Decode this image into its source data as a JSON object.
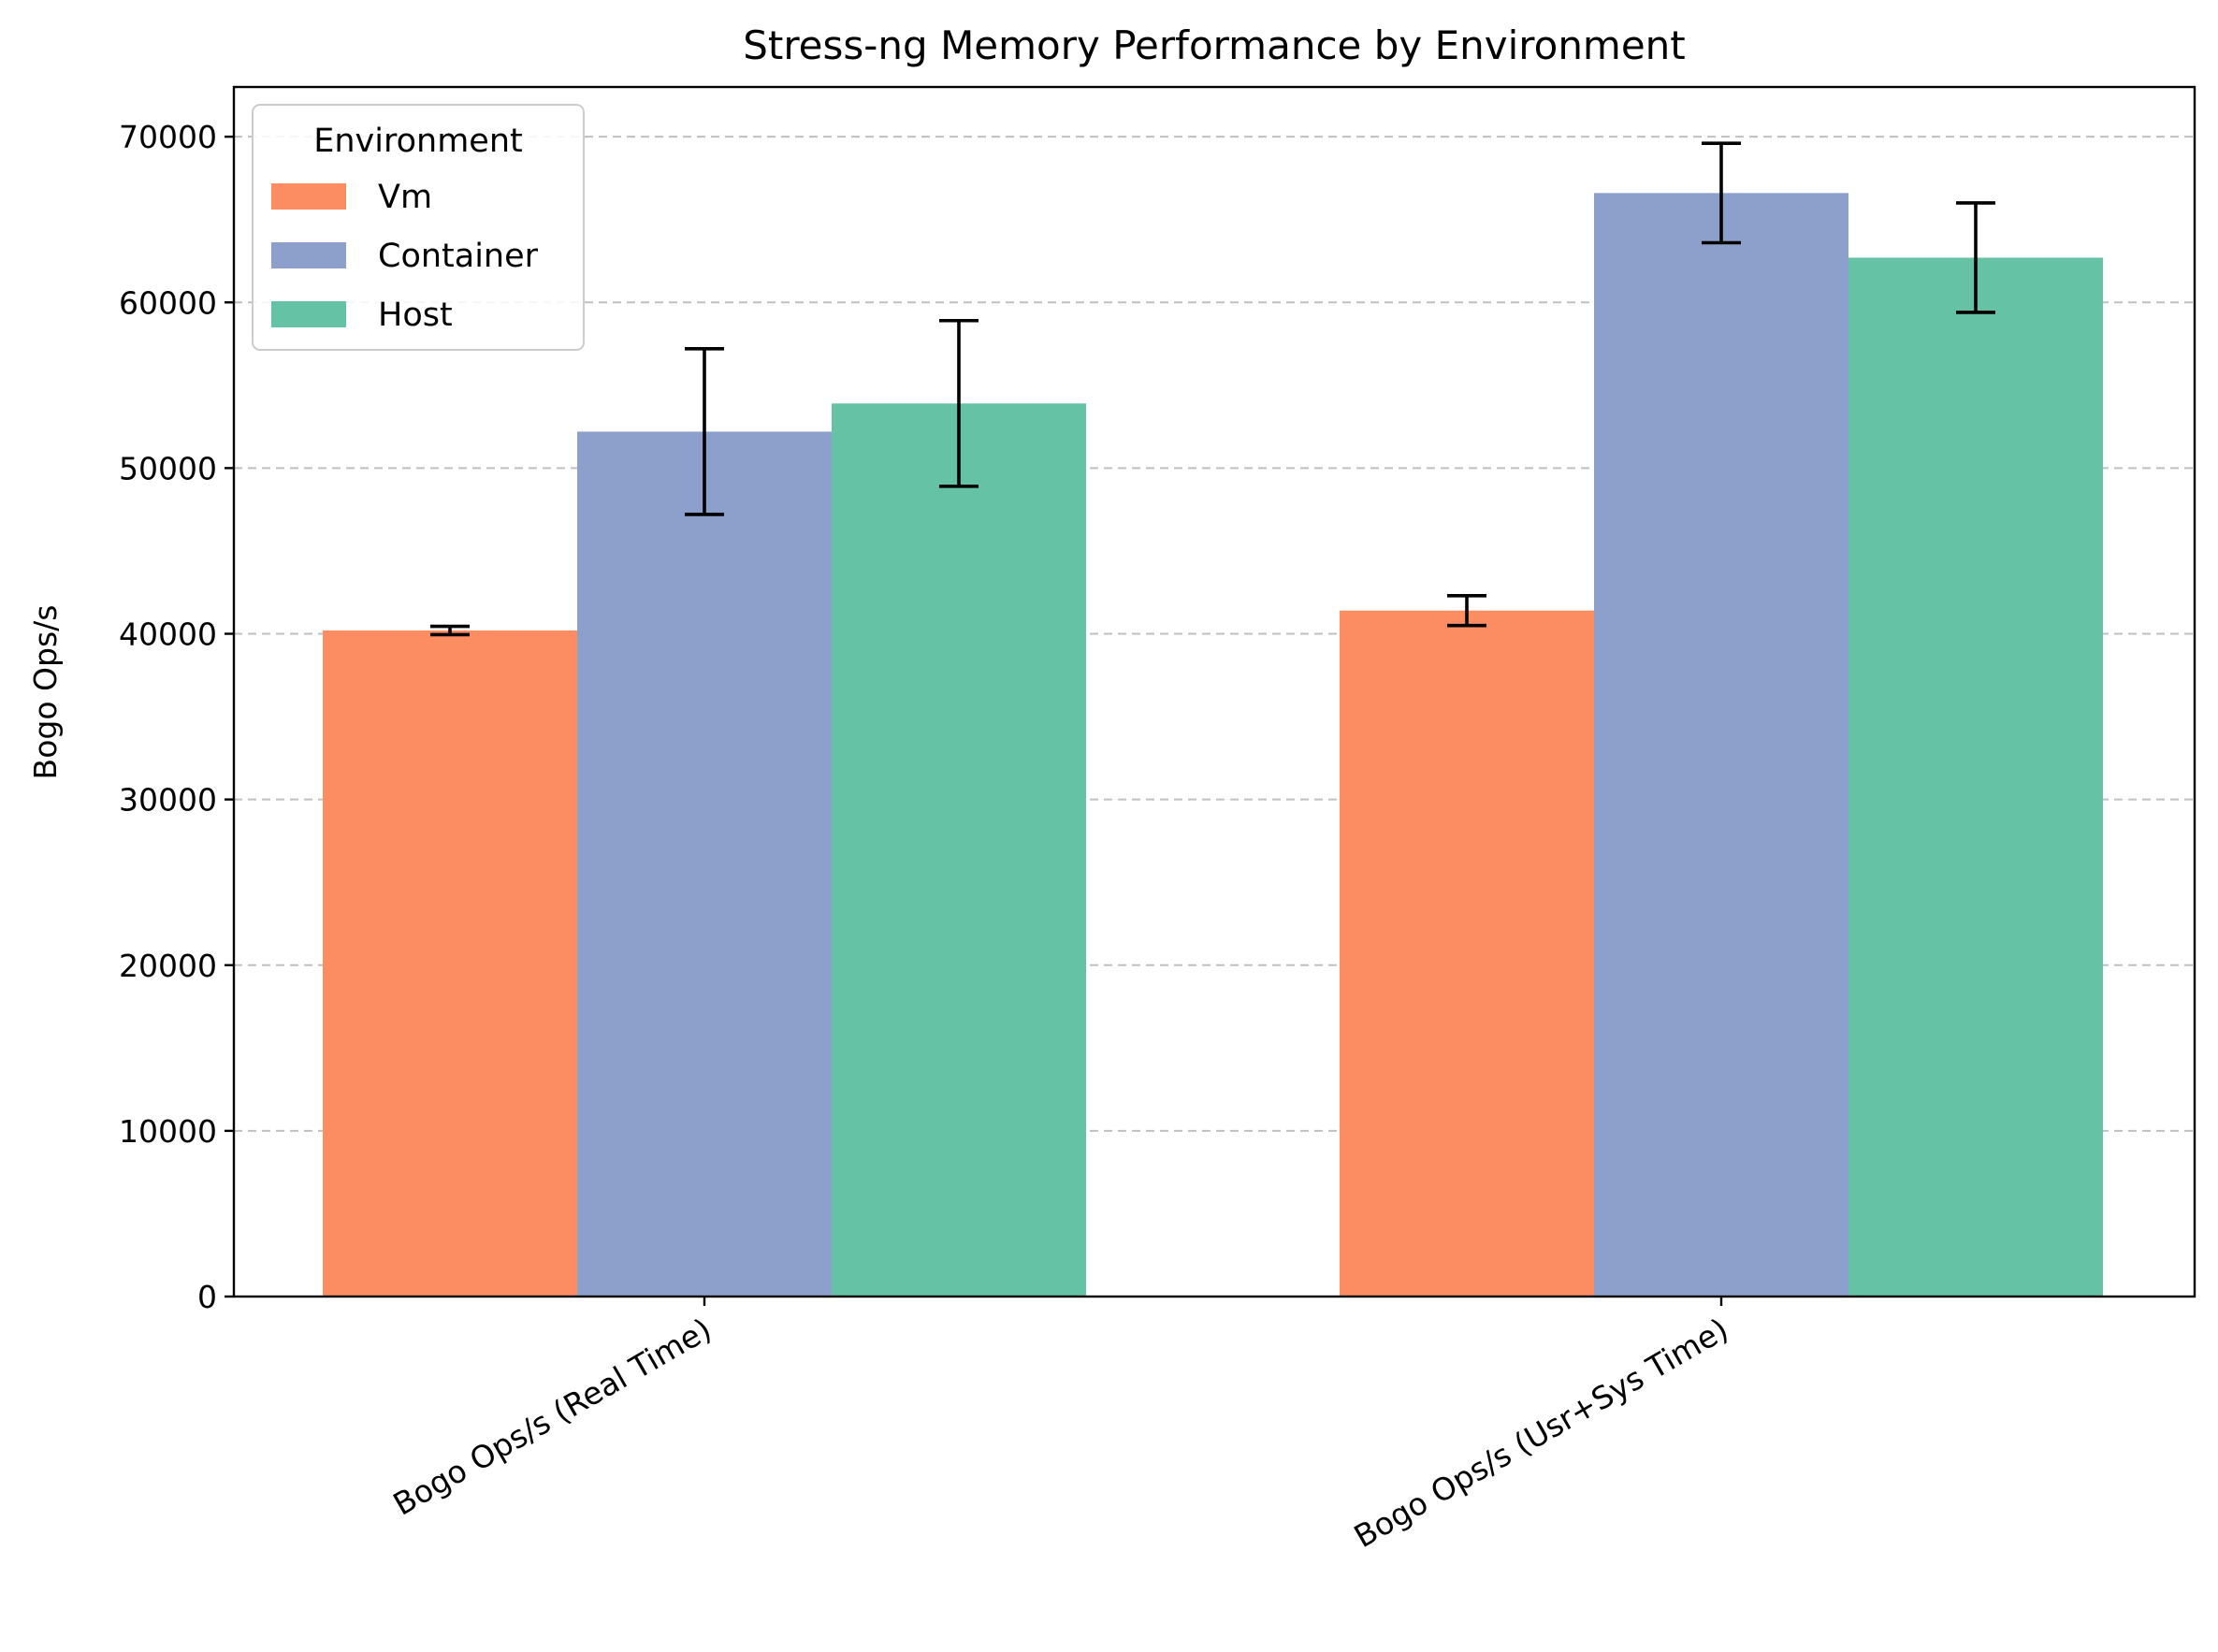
{
  "chart_data": {
    "type": "bar",
    "title": "Stress-ng Memory Performance by Environment",
    "xlabel": "",
    "ylabel": "Bogo Ops/s",
    "categories": [
      "Bogo Ops/s (Real Time)",
      "Bogo Ops/s (Usr+Sys Time)"
    ],
    "series": [
      {
        "name": "Vm",
        "color": "#fc8d62",
        "values": [
          40200,
          41400
        ],
        "errors": [
          250,
          900
        ]
      },
      {
        "name": "Container",
        "color": "#8da0cb",
        "values": [
          52200,
          66600
        ],
        "errors": [
          5000,
          3000
        ]
      },
      {
        "name": "Host",
        "color": "#66c2a5",
        "values": [
          53900,
          62700
        ],
        "errors": [
          5000,
          3300
        ]
      }
    ],
    "ylim": [
      0,
      73000
    ],
    "yticks": [
      0,
      10000,
      20000,
      30000,
      40000,
      50000,
      60000,
      70000
    ],
    "grid": "horizontal-dashed",
    "legend": {
      "title": "Environment",
      "placement": "top-left"
    }
  }
}
